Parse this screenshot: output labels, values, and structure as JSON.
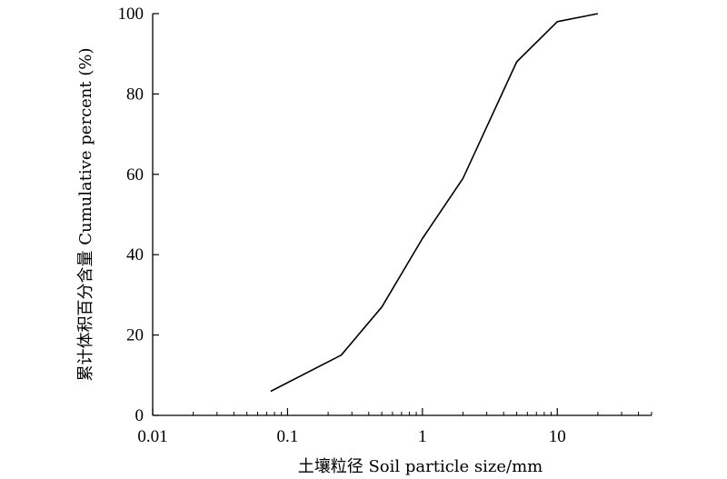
{
  "chart_data": {
    "type": "line",
    "x_scale": "log",
    "xlabel": "土壤粒径 Soil particle size/mm",
    "ylabel": "累计体积百分含量 Cumulative percent (%)",
    "xlim": [
      0.01,
      50
    ],
    "ylim": [
      0,
      100
    ],
    "x_ticks": [
      0.01,
      0.1,
      1,
      10
    ],
    "x_tick_labels": [
      "0.01",
      "0.1",
      "1",
      "10"
    ],
    "y_ticks": [
      0,
      20,
      40,
      60,
      80,
      100
    ],
    "y_tick_labels": [
      "0",
      "20",
      "40",
      "60",
      "80",
      "100"
    ],
    "grid": false,
    "box": "left-and-bottom",
    "series": [
      {
        "color": "#000000",
        "x": [
          0.075,
          0.25,
          0.5,
          1,
          2,
          5,
          10,
          20
        ],
        "y": [
          6,
          15,
          27,
          44,
          59,
          88,
          98,
          100
        ]
      }
    ]
  }
}
